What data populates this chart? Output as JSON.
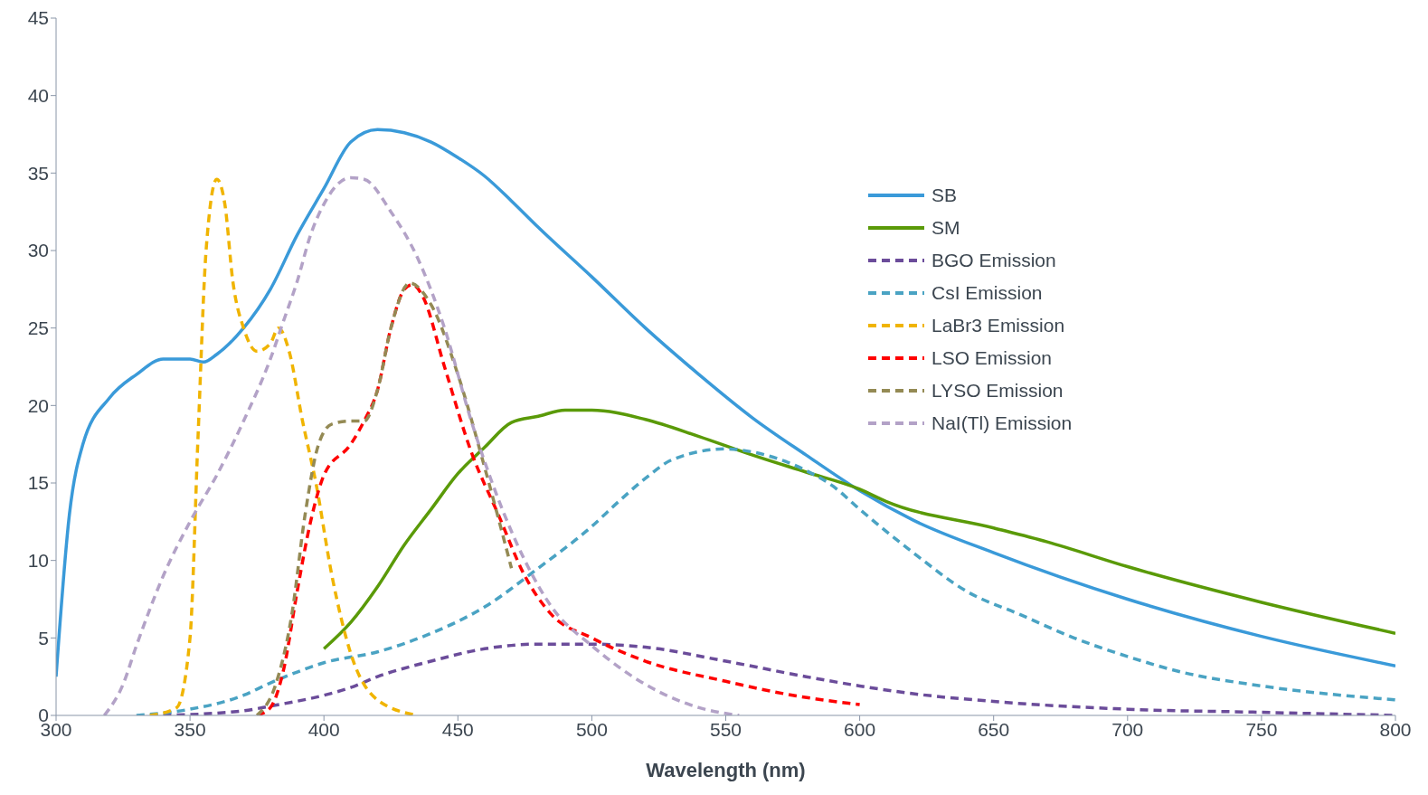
{
  "chart_data": {
    "type": "line",
    "xlabel": "Wavelength (nm)",
    "xlim": [
      300,
      800
    ],
    "xticks": [
      300,
      350,
      400,
      450,
      500,
      550,
      600,
      650,
      700,
      750,
      800
    ],
    "ylim": [
      0,
      45
    ],
    "yticks": [
      0,
      5,
      10,
      15,
      20,
      25,
      30,
      35,
      40,
      45
    ],
    "grid": false,
    "legend": "right",
    "marker": "none",
    "series": [
      {
        "name": "SB",
        "color": "#3a9ad9",
        "line_style": "solid",
        "x": [
          300,
          305,
          310,
          320,
          330,
          340,
          350,
          355,
          360,
          370,
          380,
          390,
          400,
          410,
          420,
          430,
          440,
          450,
          460,
          470,
          480,
          500,
          520,
          540,
          560,
          580,
          600,
          620,
          650,
          700,
          750,
          800
        ],
        "values": [
          2.5,
          13,
          17.5,
          20.5,
          22,
          23,
          23,
          22.8,
          23.3,
          25,
          27.5,
          31,
          34,
          37,
          37.8,
          37.6,
          37,
          36,
          34.8,
          33.2,
          31.5,
          28.3,
          25,
          22,
          19.2,
          16.8,
          14.5,
          12.6,
          10.5,
          7.5,
          5.1,
          3.2
        ]
      },
      {
        "name": "SM",
        "color": "#5a9a08",
        "line_style": "solid",
        "x": [
          400,
          410,
          420,
          430,
          440,
          450,
          460,
          470,
          480,
          490,
          500,
          520,
          540,
          560,
          580,
          600,
          610,
          650,
          670,
          700,
          750,
          800
        ],
        "values": [
          4.3,
          6,
          8.3,
          11,
          13.3,
          15.6,
          17.3,
          18.9,
          19.3,
          19.7,
          19.7,
          19.1,
          18,
          16.8,
          15.7,
          14.6,
          13.8,
          12.1,
          11.2,
          9.6,
          7.3,
          5.3
        ]
      },
      {
        "name": "BGO Emission",
        "color": "#6b4c9a",
        "line_style": "dashed",
        "x": [
          340,
          370,
          380,
          400,
          410,
          420,
          440,
          460,
          480,
          500,
          520,
          550,
          580,
          600,
          620,
          650,
          700,
          750,
          800
        ],
        "values": [
          0,
          0.3,
          0.6,
          1.3,
          1.8,
          2.5,
          3.5,
          4.3,
          4.6,
          4.6,
          4.4,
          3.5,
          2.5,
          1.9,
          1.4,
          0.9,
          0.4,
          0.2,
          0
        ]
      },
      {
        "name": "CsI Emission",
        "color": "#4aa3c3",
        "line_style": "dashed",
        "x": [
          330,
          350,
          370,
          380,
          390,
          400,
          420,
          440,
          460,
          480,
          500,
          510,
          520,
          530,
          550,
          560,
          580,
          590,
          600,
          620,
          640,
          660,
          680,
          700,
          720,
          750,
          800
        ],
        "values": [
          0,
          0.4,
          1.3,
          2.1,
          2.8,
          3.4,
          4.1,
          5.3,
          7,
          9.5,
          12.2,
          13.8,
          15.3,
          16.5,
          17.2,
          17,
          15.8,
          14.8,
          13.3,
          10.5,
          8,
          6.5,
          5,
          3.8,
          2.8,
          1.9,
          1
        ]
      },
      {
        "name": "LaBr3 Emission",
        "color": "#f0b400",
        "line_style": "dashed",
        "x": [
          335,
          345,
          350,
          353,
          356,
          360,
          363,
          366,
          370,
          375,
          380,
          383,
          387,
          392,
          397,
          403,
          410,
          420,
          435
        ],
        "values": [
          0,
          0.5,
          5,
          18,
          30,
          34.6,
          33,
          28,
          25,
          23.5,
          24,
          25,
          23.5,
          19,
          15,
          9,
          4,
          1,
          0
        ]
      },
      {
        "name": "LSO Emission",
        "color": "#ff0000",
        "line_style": "dashed",
        "x": [
          375,
          380,
          385,
          390,
          395,
          400,
          410,
          415,
          420,
          425,
          430,
          433,
          437,
          445,
          455,
          465,
          475,
          485,
          500,
          520,
          550,
          575,
          600
        ],
        "values": [
          0,
          0.5,
          3,
          8,
          12.5,
          15.5,
          17.5,
          19,
          21,
          25,
          27.5,
          27.8,
          27,
          22.5,
          17,
          13,
          9,
          6.5,
          5,
          3.5,
          2.2,
          1.3,
          0.7
        ]
      },
      {
        "name": "LYSO Emission",
        "color": "#948a54",
        "line_style": "dashed",
        "x": [
          375,
          382,
          388,
          393,
          398,
          403,
          410,
          415,
          420,
          425,
          432,
          440,
          450,
          460,
          470
        ],
        "values": [
          0,
          2,
          6.5,
          13,
          17.5,
          18.8,
          19,
          19,
          21,
          25,
          27.9,
          26.5,
          22,
          16,
          9.5
        ]
      },
      {
        "name": "NaI(Tl) Emission",
        "color": "#b3a2c7",
        "line_style": "dashed",
        "x": [
          318,
          325,
          330,
          340,
          350,
          360,
          370,
          380,
          385,
          390,
          395,
          400,
          410,
          415,
          425,
          435,
          445,
          455,
          465,
          475,
          485,
          500,
          520,
          540,
          555
        ],
        "values": [
          0,
          2,
          4.5,
          9,
          12.5,
          15.5,
          19,
          23,
          25.5,
          28,
          31,
          33,
          34.7,
          34.6,
          32.5,
          29.5,
          25,
          19,
          14,
          10,
          7,
          4.5,
          2,
          0.5,
          0
        ]
      }
    ]
  }
}
